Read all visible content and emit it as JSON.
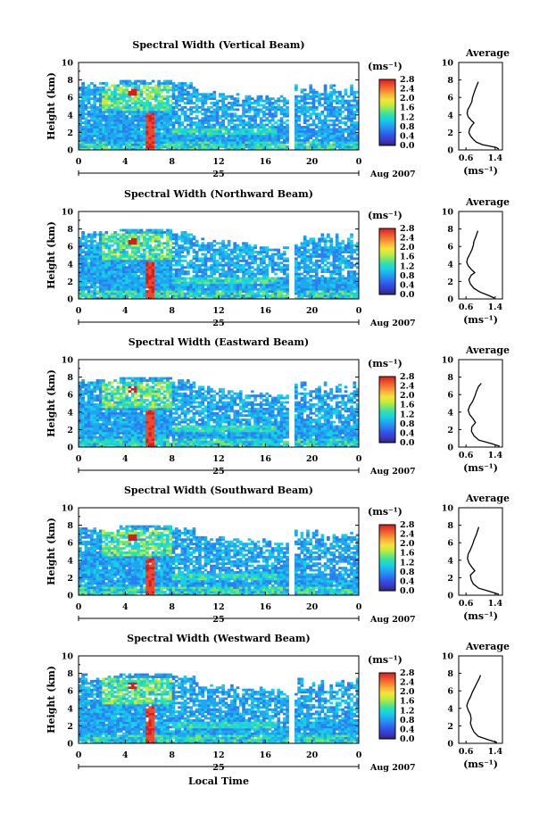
{
  "chart_data": {
    "type": "heatmap",
    "date_label": "Aug 2007",
    "day_label": "25",
    "common_xlabel": "Local Time",
    "xlim": [
      0,
      24
    ],
    "x_ticks": [
      "0",
      "4",
      "8",
      "12",
      "16",
      "20",
      "0"
    ],
    "ylim": [
      0,
      10
    ],
    "y_ticks": [
      "0",
      "2",
      "4",
      "6",
      "8",
      "10"
    ],
    "ylabel": "Height (km)",
    "colorbar": {
      "unit_label": "(ms⁻¹)",
      "range": [
        0,
        2.8
      ],
      "ticks": [
        "0.0",
        "0.4",
        "0.8",
        "1.2",
        "1.6",
        "2.0",
        "2.4",
        "2.8"
      ],
      "colors": [
        "#2a2a6e",
        "#3b38c8",
        "#2f55e6",
        "#2a7ef0",
        "#1fa7f0",
        "#18cfe6",
        "#2ee0b0",
        "#7ae66a",
        "#c8ec3c",
        "#f6e23a",
        "#f8b23a",
        "#f47c32",
        "#ec4a2c",
        "#d41e22"
      ]
    },
    "profile": {
      "title": "Average",
      "xlabel": "(ms⁻¹)",
      "x_ticks": [
        "0.6",
        "1.4"
      ],
      "xlim": [
        0.4,
        1.6
      ],
      "ylim": [
        0,
        10
      ],
      "y_ticks": [
        "0",
        "2",
        "4",
        "6",
        "8",
        "10"
      ]
    },
    "panels": [
      {
        "title": "Spectral Width (Vertical Beam)",
        "profile": [
          [
            1.5,
            0.1
          ],
          [
            1.42,
            0.3
          ],
          [
            1.05,
            0.6
          ],
          [
            0.88,
            0.9
          ],
          [
            0.8,
            1.2
          ],
          [
            0.72,
            1.6
          ],
          [
            0.68,
            2.0
          ],
          [
            0.7,
            2.4
          ],
          [
            0.76,
            2.8
          ],
          [
            0.82,
            3.1
          ],
          [
            0.74,
            3.4
          ],
          [
            0.66,
            3.8
          ],
          [
            0.63,
            4.2
          ],
          [
            0.65,
            4.6
          ],
          [
            0.7,
            5.0
          ],
          [
            0.76,
            5.5
          ],
          [
            0.78,
            6.0
          ],
          [
            0.82,
            6.5
          ],
          [
            0.86,
            7.0
          ],
          [
            0.9,
            7.4
          ],
          [
            0.94,
            7.8
          ]
        ]
      },
      {
        "title": "Spectral Width (Northward Beam)",
        "profile": [
          [
            1.38,
            0.1
          ],
          [
            1.22,
            0.4
          ],
          [
            0.98,
            0.8
          ],
          [
            0.82,
            1.2
          ],
          [
            0.72,
            1.7
          ],
          [
            0.68,
            2.2
          ],
          [
            0.74,
            2.7
          ],
          [
            0.84,
            3.0
          ],
          [
            0.74,
            3.4
          ],
          [
            0.66,
            3.8
          ],
          [
            0.62,
            4.2
          ],
          [
            0.64,
            4.6
          ],
          [
            0.7,
            5.1
          ],
          [
            0.76,
            5.6
          ],
          [
            0.8,
            6.1
          ],
          [
            0.82,
            6.6
          ],
          [
            0.86,
            7.0
          ],
          [
            0.9,
            7.5
          ],
          [
            0.93,
            7.8
          ]
        ]
      },
      {
        "title": "Spectral Width (Eastward Beam)",
        "profile": [
          [
            1.52,
            0.1
          ],
          [
            1.3,
            0.4
          ],
          [
            0.95,
            0.8
          ],
          [
            0.82,
            1.3
          ],
          [
            0.75,
            1.8
          ],
          [
            0.76,
            2.3
          ],
          [
            0.86,
            2.8
          ],
          [
            0.8,
            3.2
          ],
          [
            0.7,
            3.7
          ],
          [
            0.66,
            4.2
          ],
          [
            0.7,
            4.7
          ],
          [
            0.78,
            5.2
          ],
          [
            0.84,
            5.8
          ],
          [
            0.88,
            6.3
          ],
          [
            0.94,
            6.9
          ],
          [
            1.02,
            7.3
          ]
        ]
      },
      {
        "title": "Spectral Width (Southward Beam)",
        "profile": [
          [
            1.5,
            0.1
          ],
          [
            1.28,
            0.4
          ],
          [
            0.95,
            0.8
          ],
          [
            0.8,
            1.3
          ],
          [
            0.74,
            1.8
          ],
          [
            0.72,
            2.3
          ],
          [
            0.84,
            2.8
          ],
          [
            0.76,
            3.2
          ],
          [
            0.68,
            3.7
          ],
          [
            0.64,
            4.2
          ],
          [
            0.66,
            4.7
          ],
          [
            0.72,
            5.2
          ],
          [
            0.78,
            5.8
          ],
          [
            0.82,
            6.3
          ],
          [
            0.88,
            6.9
          ],
          [
            0.92,
            7.4
          ],
          [
            0.95,
            7.8
          ]
        ]
      },
      {
        "title": "Spectral Width (Westward Beam)",
        "profile": [
          [
            1.45,
            0.1
          ],
          [
            1.22,
            0.4
          ],
          [
            0.94,
            0.8
          ],
          [
            0.82,
            1.3
          ],
          [
            0.76,
            1.8
          ],
          [
            0.72,
            2.3
          ],
          [
            0.74,
            2.8
          ],
          [
            0.72,
            3.3
          ],
          [
            0.66,
            3.8
          ],
          [
            0.62,
            4.3
          ],
          [
            0.66,
            4.8
          ],
          [
            0.72,
            5.3
          ],
          [
            0.78,
            5.9
          ],
          [
            0.84,
            6.4
          ],
          [
            0.9,
            6.9
          ],
          [
            0.96,
            7.4
          ],
          [
            1.0,
            7.8
          ]
        ]
      }
    ]
  }
}
